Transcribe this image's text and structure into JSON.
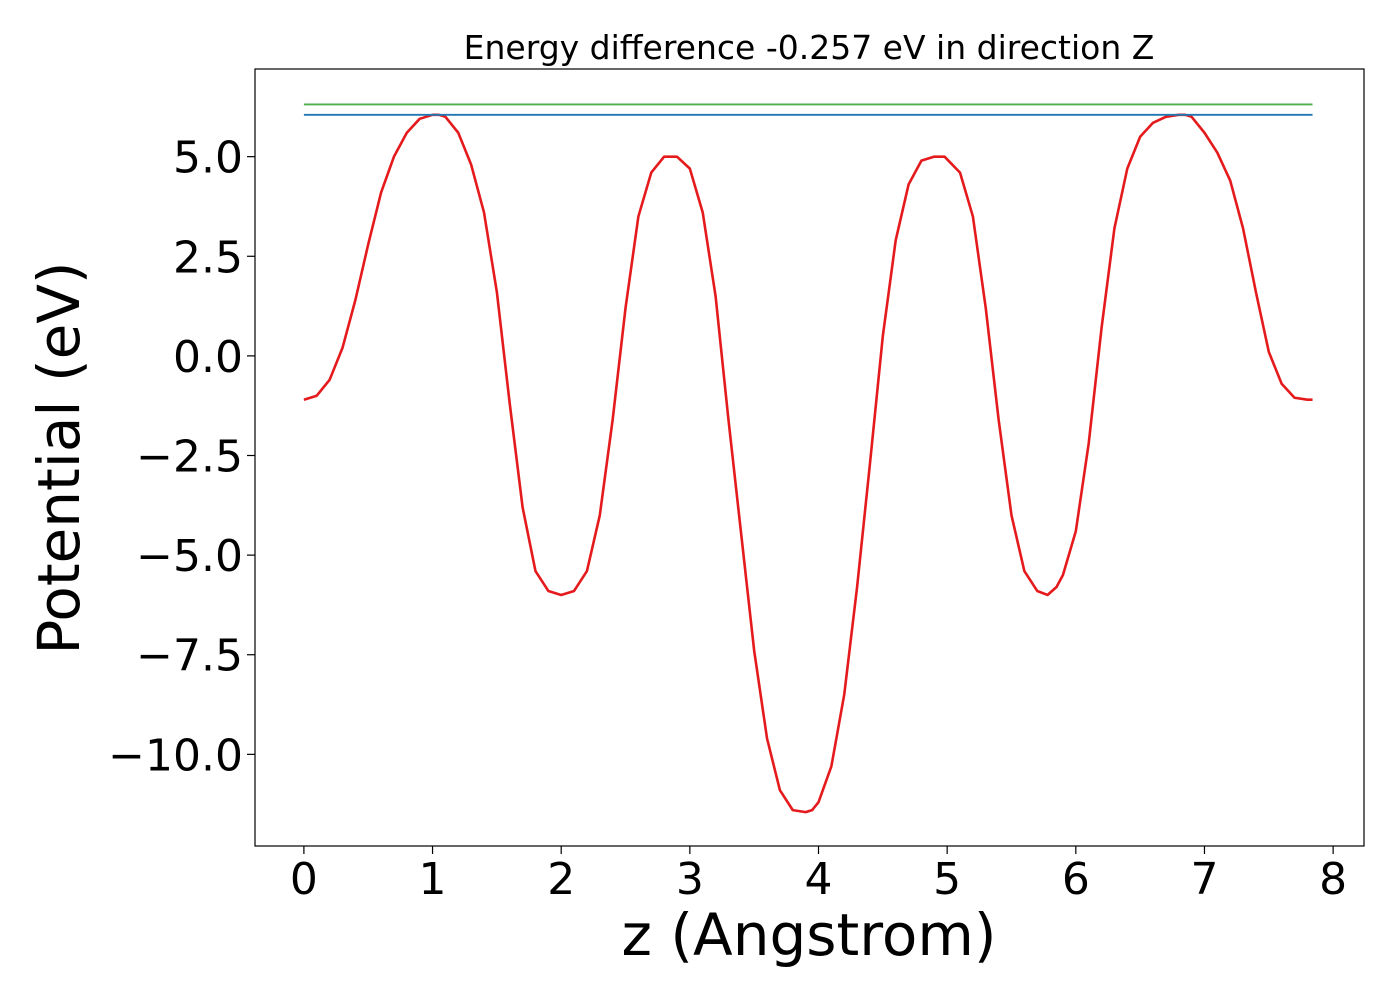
{
  "chart_data": {
    "type": "line",
    "title": "Energy difference -0.257 eV in direction Z",
    "xlabel": "z (Angstrom)",
    "ylabel": "Potential (eV)",
    "xlim": [
      -0.38,
      8.24
    ],
    "ylim": [
      -12.3,
      7.2
    ],
    "xticks": [
      0,
      1,
      2,
      3,
      4,
      5,
      6,
      7,
      8
    ],
    "xtick_labels": [
      "0",
      "1",
      "2",
      "3",
      "4",
      "5",
      "6",
      "7",
      "8"
    ],
    "yticks": [
      5.0,
      2.5,
      0.0,
      -2.5,
      -5.0,
      -7.5,
      -10.0
    ],
    "ytick_labels": [
      "5.0",
      "2.5",
      "0.0",
      "−2.5",
      "−5.0",
      "−7.5",
      "−10.0"
    ],
    "grid": false,
    "legend": "none",
    "series": [
      {
        "kind": "curve",
        "color": "#e41a1c",
        "x": [
          0.0,
          0.1,
          0.2,
          0.3,
          0.4,
          0.5,
          0.6,
          0.7,
          0.8,
          0.9,
          1.0,
          1.05,
          1.1,
          1.2,
          1.3,
          1.4,
          1.5,
          1.6,
          1.7,
          1.8,
          1.9,
          2.0,
          2.05,
          2.1,
          2.2,
          2.3,
          2.4,
          2.5,
          2.6,
          2.7,
          2.8,
          2.9,
          3.0,
          3.1,
          3.2,
          3.3,
          3.4,
          3.5,
          3.6,
          3.7,
          3.8,
          3.9,
          3.95,
          4.0,
          4.1,
          4.2,
          4.3,
          4.4,
          4.5,
          4.6,
          4.7,
          4.8,
          4.9,
          4.98,
          5.1,
          5.2,
          5.3,
          5.4,
          5.5,
          5.6,
          5.7,
          5.78,
          5.85,
          5.9,
          6.0,
          6.1,
          6.2,
          6.3,
          6.4,
          6.5,
          6.6,
          6.7,
          6.8,
          6.85,
          6.9,
          7.0,
          7.1,
          7.2,
          7.3,
          7.4,
          7.5,
          7.6,
          7.7,
          7.8,
          7.84
        ],
        "y": [
          -1.1,
          -1.0,
          -0.6,
          0.2,
          1.4,
          2.8,
          4.1,
          5.0,
          5.6,
          5.95,
          6.05,
          6.05,
          6.0,
          5.6,
          4.8,
          3.6,
          1.6,
          -1.2,
          -3.8,
          -5.4,
          -5.9,
          -6.0,
          -5.95,
          -5.9,
          -5.4,
          -4.0,
          -1.6,
          1.2,
          3.5,
          4.6,
          5.0,
          5.0,
          4.7,
          3.6,
          1.5,
          -1.6,
          -4.5,
          -7.4,
          -9.6,
          -10.9,
          -11.4,
          -11.45,
          -11.4,
          -11.2,
          -10.3,
          -8.5,
          -5.8,
          -2.7,
          0.5,
          2.9,
          4.3,
          4.9,
          5.0,
          5.0,
          4.6,
          3.5,
          1.2,
          -1.6,
          -4.0,
          -5.4,
          -5.9,
          -6.0,
          -5.8,
          -5.5,
          -4.4,
          -2.2,
          0.7,
          3.2,
          4.7,
          5.5,
          5.85,
          6.0,
          6.05,
          6.05,
          6.0,
          5.6,
          5.1,
          4.4,
          3.2,
          1.6,
          0.1,
          -0.7,
          -1.05,
          -1.1,
          -1.1
        ]
      },
      {
        "kind": "hline",
        "color": "#1f77b4",
        "x": [
          0.0,
          7.84
        ],
        "y": [
          6.05,
          6.05
        ]
      },
      {
        "kind": "hline",
        "color": "#4daf4a",
        "x": [
          0.0,
          7.84
        ],
        "y": [
          6.31,
          6.31
        ]
      }
    ]
  }
}
